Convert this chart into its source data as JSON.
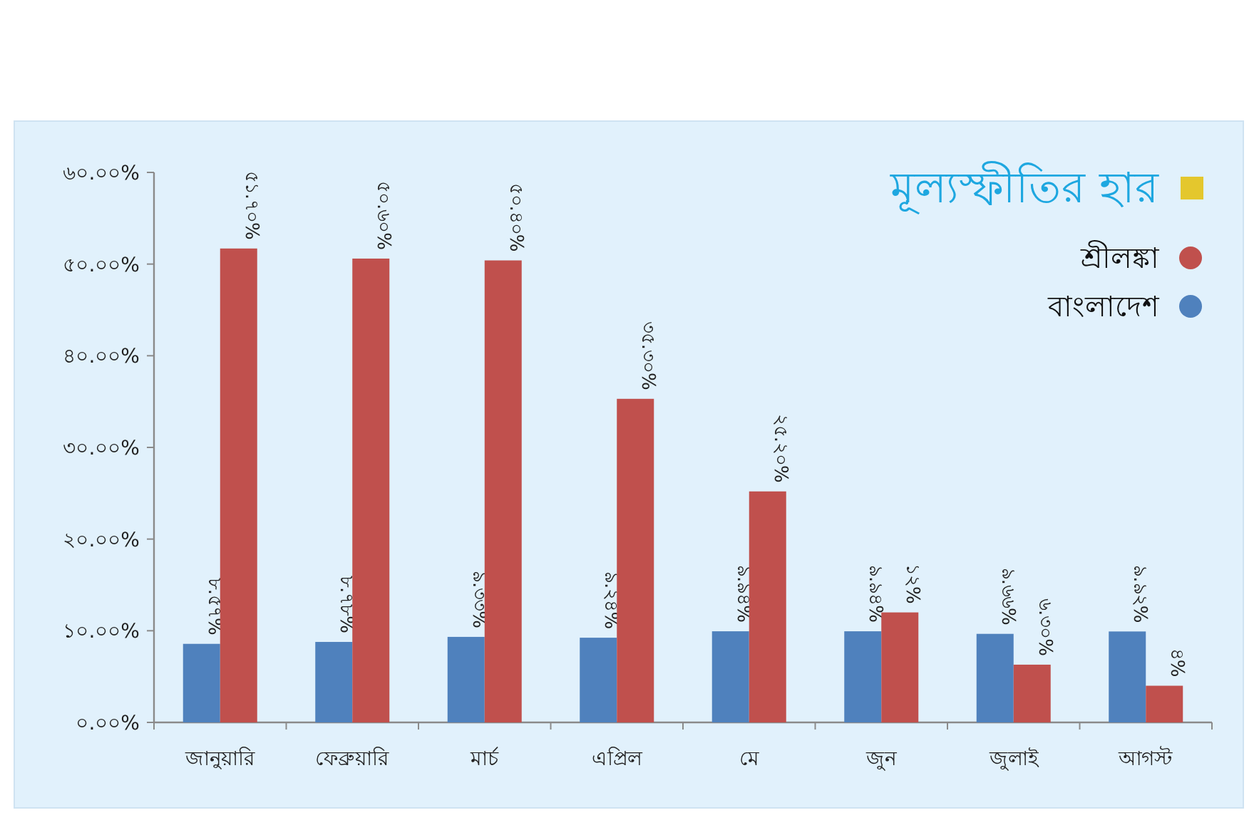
{
  "chart_data": {
    "type": "bar",
    "legend_title": "মূল্যস্ফীতির হার",
    "categories": [
      "জানুয়ারি",
      "ফেব্রুয়ারি",
      "মার্চ",
      "এপ্রিল",
      "মে",
      "জুন",
      "জুলাই",
      "আগস্ট"
    ],
    "series": [
      {
        "name": "বাংলাদেশ",
        "color": "#4f81bd",
        "values": [
          8.57,
          8.78,
          9.33,
          9.24,
          9.94,
          9.94,
          9.66,
          9.92
        ],
        "value_labels": [
          "৮.৫৭%",
          "৮.৭৮%",
          "৯.৩৩%",
          "৯.২৪%",
          "৯.৯৪%",
          "৯.৯৪%",
          "৯.৬৬%",
          "৯.৯২%"
        ]
      },
      {
        "name": "শ্রীলঙ্কা",
        "color": "#c0504d",
        "values": [
          51.7,
          50.6,
          50.4,
          35.3,
          25.2,
          12,
          6.3,
          4
        ],
        "value_labels": [
          "৫১.৭০%",
          "৫০.৬০%",
          "৫০.৪০%",
          "৩৫.৩০%",
          "২৫.২০%",
          "১২%",
          "৬.৩০%",
          "৪%"
        ]
      }
    ],
    "ylim": [
      0,
      60
    ],
    "yticks": [
      {
        "value": 0,
        "label": "০.০০%"
      },
      {
        "value": 10,
        "label": "১০.০০%"
      },
      {
        "value": 20,
        "label": "২০.০০%"
      },
      {
        "value": 30,
        "label": "৩০.০০%"
      },
      {
        "value": 40,
        "label": "৪০.০০%"
      },
      {
        "value": 50,
        "label": "৫০.০০%"
      },
      {
        "value": 60,
        "label": "৬০.০০%"
      }
    ],
    "grid": false,
    "legend": "top right"
  }
}
